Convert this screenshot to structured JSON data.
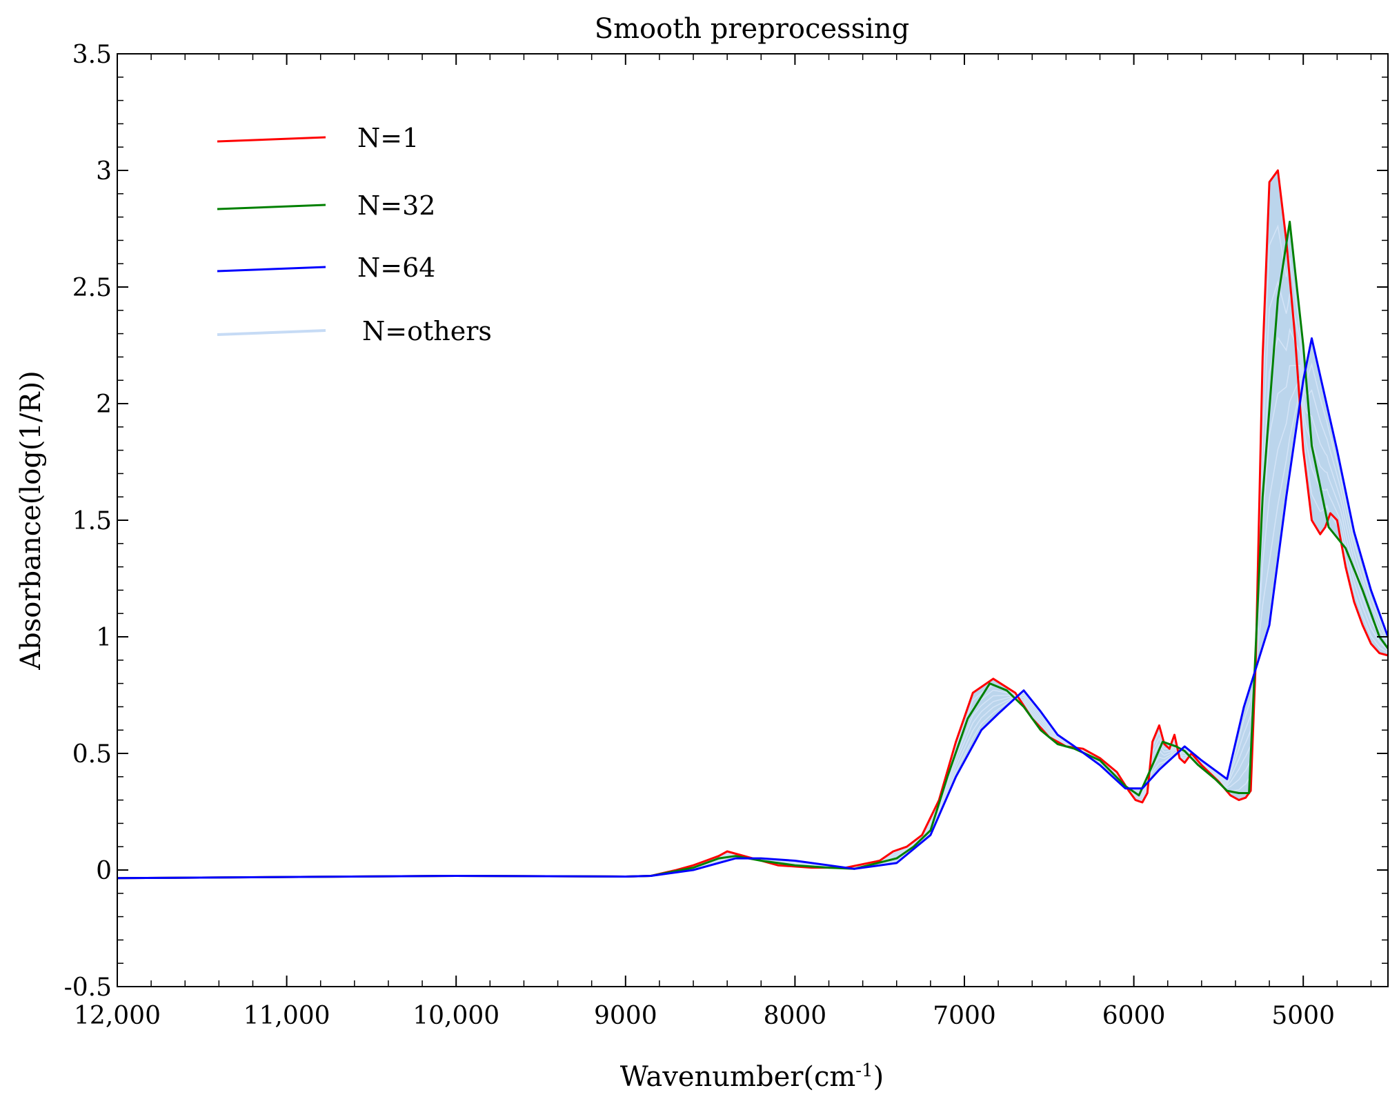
{
  "chart_data": {
    "type": "line",
    "title": "Smooth preprocessing",
    "xlabel_main": "Wavenumber(cm",
    "xlabel_sup": "-1",
    "xlabel_end": ")",
    "ylabel": "Absorbance(log(1/R))",
    "xlim": [
      12000,
      4500
    ],
    "ylim": [
      -0.5,
      3.5
    ],
    "x_ticks": [
      {
        "value": 12000,
        "label": "12,000"
      },
      {
        "value": 11000,
        "label": "11,000"
      },
      {
        "value": 10000,
        "label": "10,000"
      },
      {
        "value": 9000,
        "label": "9000"
      },
      {
        "value": 8000,
        "label": "8000"
      },
      {
        "value": 7000,
        "label": "7000"
      },
      {
        "value": 6000,
        "label": "6000"
      },
      {
        "value": 5000,
        "label": "5000"
      }
    ],
    "y_ticks": [
      {
        "value": 3.5,
        "label": "3.5"
      },
      {
        "value": 3,
        "label": "3"
      },
      {
        "value": 2.5,
        "label": "2.5"
      },
      {
        "value": 2,
        "label": "2"
      },
      {
        "value": 1.5,
        "label": "1.5"
      },
      {
        "value": 1,
        "label": "1"
      },
      {
        "value": 0.5,
        "label": "0.5"
      },
      {
        "value": 0,
        "label": "0"
      },
      {
        "value": -0.5,
        "label": "-0.5"
      }
    ],
    "legend": [
      {
        "label": "N=1",
        "color": "#ff0000"
      },
      {
        "label": "N=32",
        "color": "#008000"
      },
      {
        "label": "N=64",
        "color": "#0000ff"
      },
      {
        "label": "N=others",
        "color": "#c6dbf5"
      }
    ],
    "band_color": "#b4d0ea",
    "series": [
      {
        "name": "N=1",
        "color": "#ff0000",
        "x": [
          12000,
          11000,
          10000,
          9000,
          8850,
          8700,
          8600,
          8450,
          8400,
          8300,
          8100,
          7900,
          7700,
          7500,
          7420,
          7340,
          7250,
          7150,
          7050,
          6950,
          6830,
          6700,
          6600,
          6500,
          6400,
          6300,
          6200,
          6100,
          6030,
          5990,
          5950,
          5920,
          5890,
          5850,
          5820,
          5790,
          5760,
          5730,
          5700,
          5660,
          5600,
          5500,
          5430,
          5380,
          5340,
          5310,
          5280,
          5240,
          5200,
          5150,
          5100,
          5050,
          5000,
          4950,
          4900,
          4870,
          4840,
          4800,
          4750,
          4700,
          4650,
          4600,
          4550,
          4500
        ],
        "y": [
          -0.035,
          -0.03,
          -0.025,
          -0.028,
          -0.025,
          0.0,
          0.02,
          0.06,
          0.08,
          0.06,
          0.02,
          0.01,
          0.01,
          0.04,
          0.08,
          0.1,
          0.15,
          0.3,
          0.55,
          0.76,
          0.82,
          0.76,
          0.65,
          0.57,
          0.53,
          0.52,
          0.48,
          0.42,
          0.34,
          0.3,
          0.29,
          0.33,
          0.55,
          0.62,
          0.54,
          0.52,
          0.58,
          0.48,
          0.46,
          0.5,
          0.45,
          0.38,
          0.32,
          0.3,
          0.31,
          0.34,
          0.9,
          2.2,
          2.95,
          3.0,
          2.7,
          2.3,
          1.8,
          1.5,
          1.44,
          1.47,
          1.53,
          1.5,
          1.3,
          1.15,
          1.05,
          0.97,
          0.93,
          0.92
        ]
      },
      {
        "name": "N=32",
        "color": "#008000",
        "x": [
          12000,
          11000,
          10000,
          9000,
          8850,
          8600,
          8450,
          8350,
          8200,
          8000,
          7800,
          7650,
          7400,
          7300,
          7200,
          7100,
          6980,
          6850,
          6750,
          6650,
          6550,
          6450,
          6350,
          6200,
          6050,
          5970,
          5920,
          5830,
          5750,
          5700,
          5620,
          5520,
          5450,
          5380,
          5320,
          5240,
          5150,
          5080,
          5000,
          4950,
          4850,
          4750,
          4650,
          4550,
          4500
        ],
        "y": [
          -0.035,
          -0.03,
          -0.025,
          -0.028,
          -0.025,
          0.01,
          0.05,
          0.06,
          0.04,
          0.02,
          0.01,
          0.005,
          0.05,
          0.1,
          0.17,
          0.4,
          0.65,
          0.8,
          0.77,
          0.7,
          0.6,
          0.54,
          0.52,
          0.47,
          0.36,
          0.32,
          0.4,
          0.55,
          0.53,
          0.51,
          0.45,
          0.39,
          0.34,
          0.33,
          0.33,
          1.6,
          2.45,
          2.78,
          2.25,
          1.82,
          1.47,
          1.38,
          1.2,
          1.0,
          0.95
        ]
      },
      {
        "name": "N=64",
        "color": "#0000ff",
        "x": [
          12000,
          11000,
          10000,
          9000,
          8850,
          8600,
          8350,
          8200,
          8000,
          7800,
          7650,
          7400,
          7200,
          7050,
          6900,
          6800,
          6650,
          6550,
          6450,
          6350,
          6200,
          6050,
          5950,
          5850,
          5700,
          5600,
          5450,
          5350,
          5200,
          5100,
          5000,
          4950,
          4800,
          4700,
          4600,
          4500
        ],
        "y": [
          -0.035,
          -0.03,
          -0.025,
          -0.028,
          -0.025,
          0.0,
          0.05,
          0.05,
          0.04,
          0.02,
          0.005,
          0.03,
          0.15,
          0.4,
          0.6,
          0.67,
          0.77,
          0.68,
          0.58,
          0.53,
          0.45,
          0.35,
          0.35,
          0.43,
          0.53,
          0.47,
          0.39,
          0.7,
          1.05,
          1.6,
          2.1,
          2.28,
          1.8,
          1.45,
          1.2,
          1.0
        ]
      }
    ]
  }
}
